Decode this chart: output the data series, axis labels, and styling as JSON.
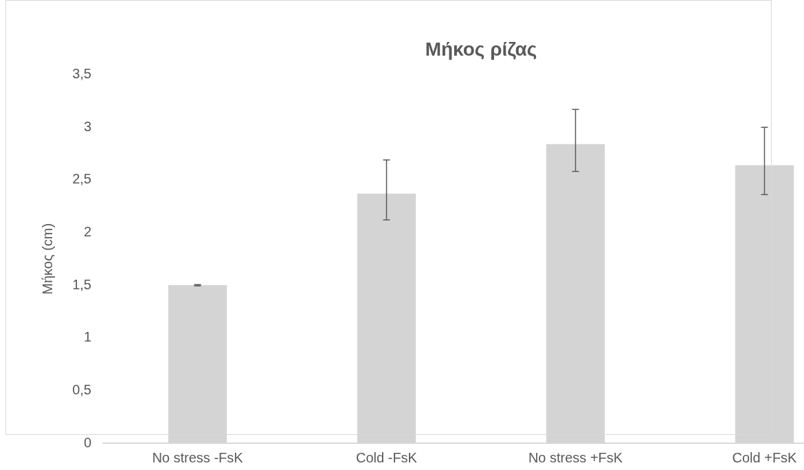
{
  "chart_data": {
    "type": "bar",
    "title": "Μήκος ρίζας",
    "ylabel": "Μήκος (cm)",
    "categories": [
      "No stress -FsK",
      "Cold -FsK",
      "No stress +FsK",
      "Cold +FsK"
    ],
    "values": [
      1.5,
      2.37,
      2.84,
      2.64
    ],
    "errors": [
      0.005,
      [
        2.12,
        2.69
      ],
      [
        2.58,
        3.17
      ],
      [
        2.36,
        3.0
      ]
    ],
    "color": "#d4d4d4",
    "ylim": [
      0,
      3.5
    ],
    "yticks": [
      0,
      {
        "value": 0.5,
        "label": "0,5"
      },
      1,
      {
        "value": 1.5,
        "label": "1,5"
      },
      2,
      {
        "value": 2.5,
        "label": "2,5"
      },
      3,
      {
        "value": 3.5,
        "label": "3,5"
      }
    ],
    "legend": false
  }
}
